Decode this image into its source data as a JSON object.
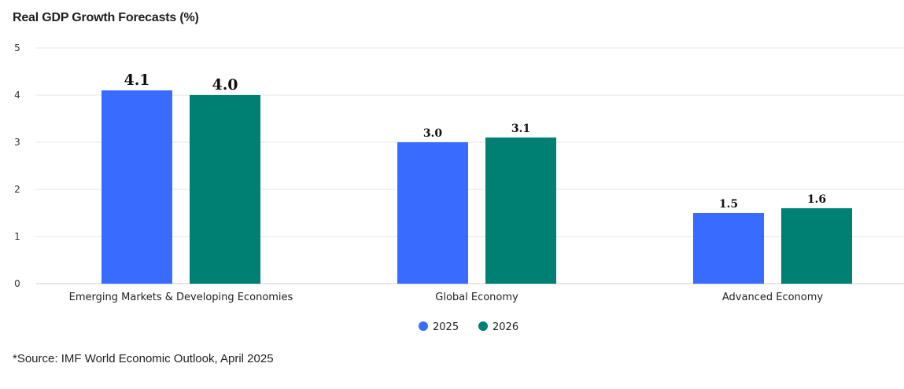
{
  "title": "Real GDP Growth Forecasts (%)",
  "source": "*Source: IMF World Economic Outlook, April 2025",
  "chart_data": {
    "type": "bar",
    "title": "Real GDP Growth Forecasts (%)",
    "xlabel": "",
    "ylabel": "",
    "ylim": [
      0,
      5
    ],
    "yticks": [
      0,
      1,
      2,
      3,
      4,
      5
    ],
    "grid": true,
    "legend_position": "bottom",
    "categories": [
      "Emerging Markets & Developing Economies",
      "Global Economy",
      "Advanced Economy"
    ],
    "series": [
      {
        "name": "2025",
        "color": "#3a6bff",
        "values": [
          4.1,
          3.0,
          1.5
        ],
        "labels": [
          "4.1",
          "3.0",
          "1.5"
        ]
      },
      {
        "name": "2026",
        "color": "#008073",
        "values": [
          4.0,
          3.1,
          1.6
        ],
        "labels": [
          "4.0",
          "3.1",
          "1.6"
        ]
      }
    ]
  }
}
